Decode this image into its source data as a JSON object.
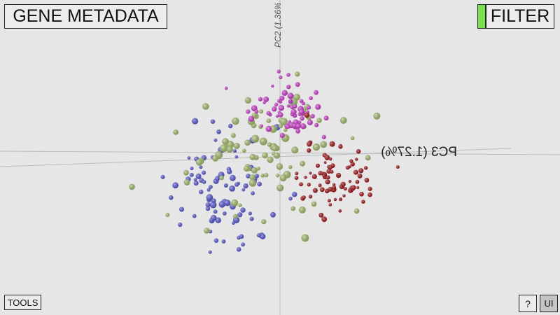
{
  "header": {
    "title": "GENE METADATA",
    "filter": "FILTER"
  },
  "axes": {
    "pc2": "PC2 (1.36%",
    "pc3": "PC3 (1.27%)"
  },
  "footer": {
    "tools": "TOOLS",
    "help": "?",
    "ui": "UI"
  }
}
